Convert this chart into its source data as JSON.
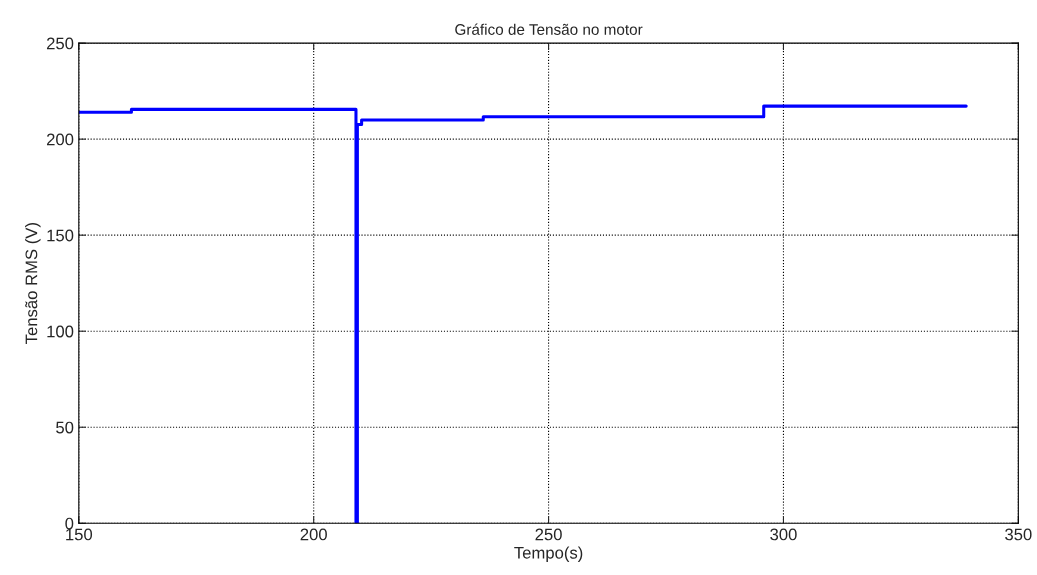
{
  "chart_data": {
    "type": "line",
    "title": "Gráfico de Tensão no motor",
    "xlabel": "Tempo(s)",
    "ylabel": "Tensão RMS (V)",
    "series": [
      {
        "color": "#0000ff",
        "x": [
          150,
          161.2,
          161.2,
          209.0,
          209.0,
          209.3,
          209.3,
          210.2,
          210.2,
          236.1,
          236.1,
          295.8,
          295.8,
          338.9
        ],
        "values": [
          214,
          214,
          215.5,
          215.5,
          0,
          0,
          207.6,
          207.6,
          210,
          210,
          211.7,
          211.7,
          217.2,
          217.2
        ]
      }
    ],
    "xlim": [
      150,
      350
    ],
    "xticks": [
      150,
      200,
      250,
      300,
      350
    ],
    "ylim": [
      0,
      250
    ],
    "yticks": [
      0,
      50,
      100,
      150,
      200,
      250
    ],
    "grid": true,
    "line_style": "solid",
    "marker": "none"
  }
}
